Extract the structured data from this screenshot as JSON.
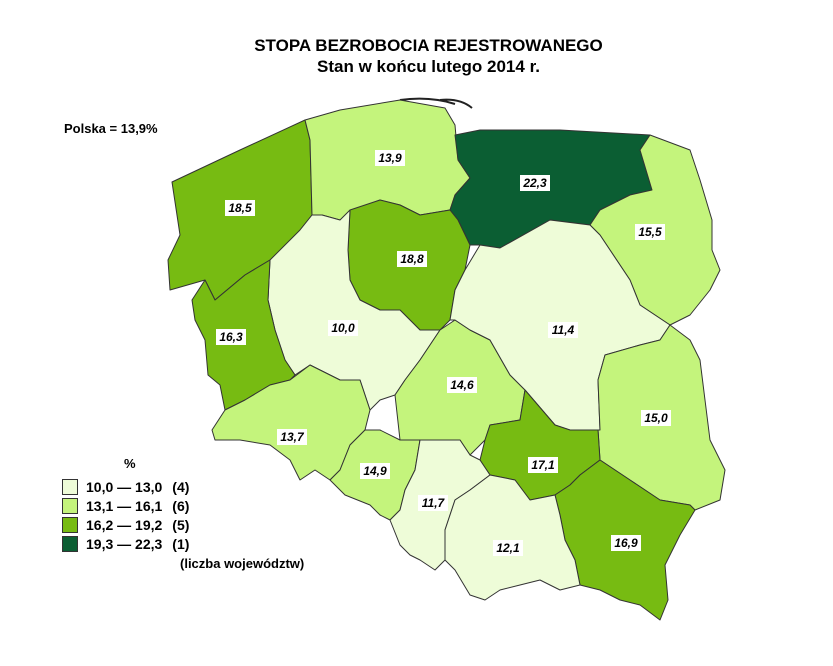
{
  "title": "STOPA BEZROBOCIA REJESTROWANEGO",
  "subtitle": "Stan w końcu lutego 2014 r.",
  "national": "Polska = 13,9%",
  "legend": {
    "unit": "%",
    "classes": [
      {
        "range": "10,0 — 13,0",
        "count": "(4)",
        "color": "#eefcd8"
      },
      {
        "range": "13,1 — 16,1",
        "count": "(6)",
        "color": "#c4f47c"
      },
      {
        "range": "16,2 — 19,2",
        "count": "(5)",
        "color": "#77bb12"
      },
      {
        "range": "19,3 — 22,3",
        "count": "(1)",
        "color": "#0b5e33"
      }
    ],
    "note": "(liczba województw)"
  },
  "regions": [
    {
      "id": "zachodniopomorskie",
      "value": "18,5",
      "class": 2
    },
    {
      "id": "pomorskie",
      "value": "13,9",
      "class": 1
    },
    {
      "id": "warminsko-mazurskie",
      "value": "22,3",
      "class": 3
    },
    {
      "id": "podlaskie",
      "value": "15,5",
      "class": 1
    },
    {
      "id": "kujawsko-pomorskie",
      "value": "18,8",
      "class": 2
    },
    {
      "id": "wielkopolskie",
      "value": "10,0",
      "class": 0
    },
    {
      "id": "lubuskie",
      "value": "16,3",
      "class": 2
    },
    {
      "id": "dolnoslaskie",
      "value": "13,7",
      "class": 1
    },
    {
      "id": "opolskie",
      "value": "14,9",
      "class": 1
    },
    {
      "id": "lodzkie",
      "value": "14,6",
      "class": 1
    },
    {
      "id": "mazowieckie",
      "value": "11,4",
      "class": 0
    },
    {
      "id": "lubelskie",
      "value": "15,0",
      "class": 1
    },
    {
      "id": "swietokrzyskie",
      "value": "17,1",
      "class": 2
    },
    {
      "id": "podkarpackie",
      "value": "16,9",
      "class": 2
    },
    {
      "id": "slaskie",
      "value": "11,7",
      "class": 0
    },
    {
      "id": "malopolskie",
      "value": "12,1",
      "class": 0
    }
  ]
}
